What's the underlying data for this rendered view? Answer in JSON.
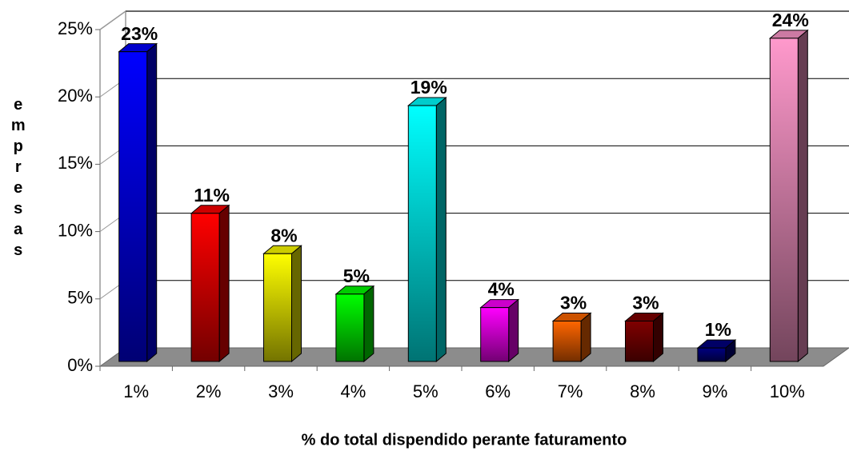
{
  "chart_data": {
    "type": "bar",
    "x_label": "% do total dispendido perante faturamento",
    "y_label": "empresas",
    "categories": [
      "1%",
      "2%",
      "3%",
      "4%",
      "5%",
      "6%",
      "7%",
      "8%",
      "9%",
      "10%"
    ],
    "values": [
      23,
      11,
      8,
      5,
      19,
      4,
      3,
      3,
      1,
      24
    ],
    "value_labels": [
      "23%",
      "11%",
      "8%",
      "5%",
      "19%",
      "4%",
      "3%",
      "3%",
      "1%",
      "24%"
    ],
    "colors": [
      "#0000ff",
      "#ff0000",
      "#ffff00",
      "#00ff00",
      "#00ffff",
      "#ff00ff",
      "#ff6600",
      "#800000",
      "#000080",
      "#ff99cc"
    ],
    "ylim": [
      0,
      25
    ],
    "yticks": [
      {
        "value": 0,
        "label": "0%"
      },
      {
        "value": 5,
        "label": "5%"
      },
      {
        "value": 10,
        "label": "10%"
      },
      {
        "value": 15,
        "label": "15%"
      },
      {
        "value": 20,
        "label": "20%"
      },
      {
        "value": 25,
        "label": "25%"
      }
    ],
    "grid": true
  }
}
